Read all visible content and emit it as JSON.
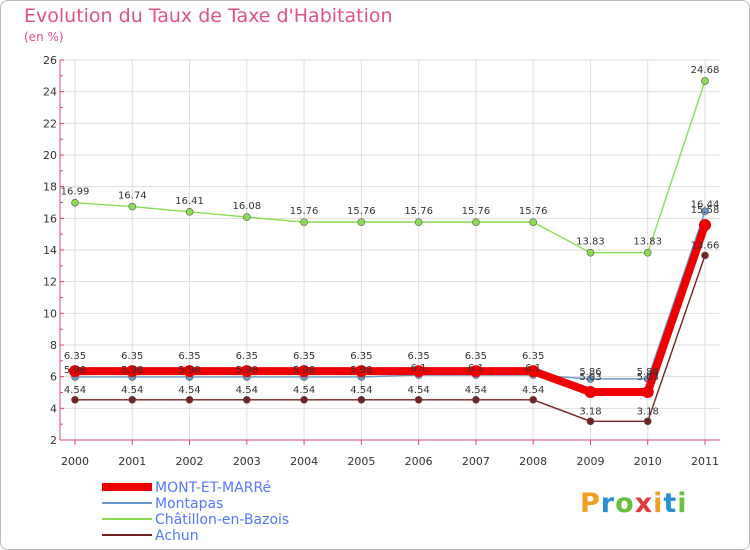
{
  "title": "Evolution du Taux de Taxe d'Habitation",
  "subtitle": "(en %)",
  "logo": {
    "text": "Proxiti"
  },
  "chart_data": {
    "type": "line",
    "title": "Evolution du Taux de Taxe d'Habitation",
    "subtitle": "(en %)",
    "categories": [
      "2000",
      "2001",
      "2002",
      "2003",
      "2004",
      "2005",
      "2006",
      "2007",
      "2008",
      "2009",
      "2010",
      "2011"
    ],
    "ylim": [
      2,
      26
    ],
    "yticks": [
      "2",
      "4",
      "6",
      "8",
      "10",
      "12",
      "14",
      "16",
      "18",
      "20",
      "22",
      "24",
      "26"
    ],
    "grid": true,
    "legend": "bottom-left",
    "series": [
      {
        "name": "MONT-ET-MARRé",
        "color": "#ee0000",
        "values": [
          6.35,
          6.35,
          6.35,
          6.35,
          6.35,
          6.35,
          6.35,
          6.35,
          6.35,
          5.03,
          5.03,
          15.58
        ],
        "labels": [
          "6.35",
          "6.35",
          "6.35",
          "6.35",
          "6.35",
          "6.35",
          "6.35",
          "6.35",
          "6.35",
          "5.03",
          "5.03",
          "15.58"
        ]
      },
      {
        "name": "Montapas",
        "color": "#6699cc",
        "values": [
          5.98,
          5.98,
          5.98,
          5.98,
          5.98,
          5.98,
          6.1,
          6.1,
          6.1,
          5.86,
          5.86,
          16.44
        ],
        "labels": [
          "5.98",
          "5.98",
          "5.98",
          "5.98",
          "5.98",
          "5.98",
          "6.1",
          "6.1",
          "6.1",
          "5.86",
          "5.86",
          "16.44"
        ]
      },
      {
        "name": "Châtillon-en-Bazois",
        "color": "#88dd55",
        "values": [
          16.99,
          16.74,
          16.41,
          16.08,
          15.76,
          15.76,
          15.76,
          15.76,
          15.76,
          13.83,
          13.83,
          24.68
        ],
        "labels": [
          "16.99",
          "16.74",
          "16.41",
          "16.08",
          "15.76",
          "15.76",
          "15.76",
          "15.76",
          "15.76",
          "13.83",
          "13.83",
          "24.68"
        ]
      },
      {
        "name": "Achun",
        "color": "#772222",
        "values": [
          4.54,
          4.54,
          4.54,
          4.54,
          4.54,
          4.54,
          4.54,
          4.54,
          4.54,
          3.18,
          3.18,
          13.66
        ],
        "labels": [
          "4.54",
          "4.54",
          "4.54",
          "4.54",
          "4.54",
          "4.54",
          "4.54",
          "4.54",
          "4.54",
          "3.18",
          "3.18",
          "13.66"
        ]
      }
    ]
  }
}
